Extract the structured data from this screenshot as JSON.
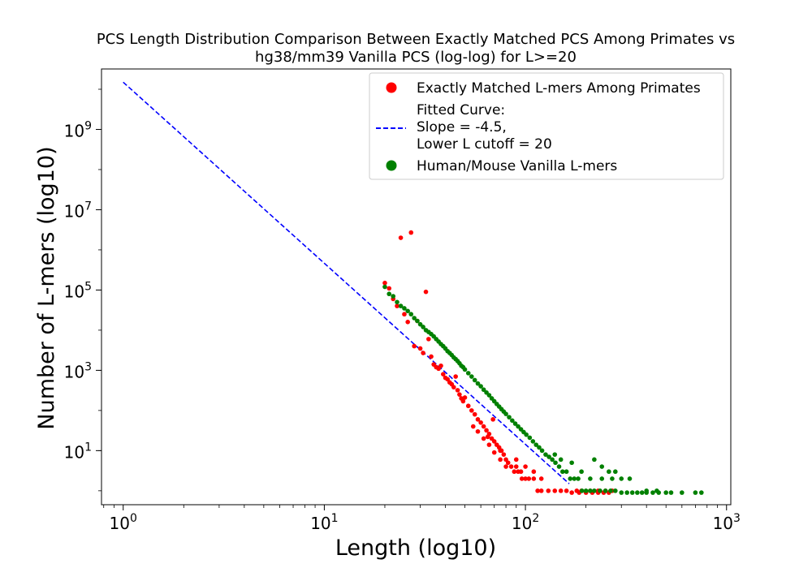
{
  "chart_data": {
    "type": "scatter",
    "title": [
      "PCS Length Distribution Comparison Between Exactly Matched PCS Among Primates vs",
      "hg38/mm39 Vanilla PCS (log-log) for L>=20"
    ],
    "xlabel": "Length (log10)",
    "ylabel": "Number of L-mers (log10)",
    "xscale": "log",
    "yscale": "log",
    "xlim": [
      0.78,
      1050
    ],
    "ylim": [
      0.45,
      32000000000.0
    ],
    "x_ticks": [
      {
        "base": "10",
        "exp": "0",
        "value": 1
      },
      {
        "base": "10",
        "exp": "1",
        "value": 10
      },
      {
        "base": "10",
        "exp": "2",
        "value": 100
      },
      {
        "base": "10",
        "exp": "3",
        "value": 1000
      }
    ],
    "y_ticks": [
      {
        "base": "10",
        "exp": "1",
        "value": 10
      },
      {
        "base": "10",
        "exp": "3",
        "value": 1000
      },
      {
        "base": "10",
        "exp": "5",
        "value": 100000
      },
      {
        "base": "10",
        "exp": "7",
        "value": 10000000
      },
      {
        "base": "10",
        "exp": "9",
        "value": 1000000000
      }
    ],
    "legend_position": "top-right",
    "legend": [
      {
        "lines": [
          "Exactly Matched L-mers Among Primates"
        ],
        "marker": "dot",
        "color": "#ff0000"
      },
      {
        "lines": [
          "Fitted Curve:",
          "Slope = -4.5,",
          "Lower L cutoff = 20"
        ],
        "marker": "dashed-line",
        "color": "#0000ff"
      },
      {
        "lines": [
          "Human/Mouse Vanilla L-mers"
        ],
        "marker": "dot",
        "color": "#008000"
      }
    ],
    "series": [
      {
        "name": "Exactly Matched L-mers Among Primates",
        "color": "#ff0000",
        "points": [
          [
            20,
            150000
          ],
          [
            21,
            110000
          ],
          [
            22,
            60000
          ],
          [
            23,
            40000
          ],
          [
            24,
            2000000
          ],
          [
            25,
            25000
          ],
          [
            26,
            16000
          ],
          [
            27,
            2700000
          ],
          [
            28,
            4000
          ],
          [
            29,
            17000
          ],
          [
            30,
            3500
          ],
          [
            31,
            2700
          ],
          [
            32,
            90000
          ],
          [
            33,
            6000
          ],
          [
            34,
            2200
          ],
          [
            35,
            1400
          ],
          [
            36,
            1200
          ],
          [
            37,
            1100
          ],
          [
            38,
            1300
          ],
          [
            39,
            800
          ],
          [
            40,
            650
          ],
          [
            41,
            600
          ],
          [
            42,
            500
          ],
          [
            43,
            450
          ],
          [
            44,
            380
          ],
          [
            45,
            700
          ],
          [
            46,
            320
          ],
          [
            47,
            250
          ],
          [
            48,
            200
          ],
          [
            49,
            170
          ],
          [
            50,
            210
          ],
          [
            52,
            130
          ],
          [
            54,
            100
          ],
          [
            56,
            80
          ],
          [
            58,
            60
          ],
          [
            60,
            50
          ],
          [
            62,
            40
          ],
          [
            64,
            32
          ],
          [
            66,
            26
          ],
          [
            68,
            20
          ],
          [
            70,
            17
          ],
          [
            72,
            14
          ],
          [
            74,
            12
          ],
          [
            76,
            10
          ],
          [
            78,
            8
          ],
          [
            80,
            6
          ],
          [
            82,
            5
          ],
          [
            85,
            4
          ],
          [
            88,
            3
          ],
          [
            92,
            3
          ],
          [
            96,
            2
          ],
          [
            100,
            2
          ],
          [
            104,
            2
          ],
          [
            110,
            2
          ],
          [
            115,
            1
          ],
          [
            120,
            1
          ],
          [
            130,
            1
          ],
          [
            140,
            1
          ],
          [
            150,
            1
          ],
          [
            160,
            1
          ],
          [
            180,
            1
          ],
          [
            170,
            0.9
          ],
          [
            185,
            0.9
          ],
          [
            200,
            0.9
          ],
          [
            215,
            0.9
          ],
          [
            230,
            0.9
          ],
          [
            245,
            0.9
          ],
          [
            260,
            0.9
          ],
          [
            190,
            1
          ],
          [
            210,
            1
          ],
          [
            230,
            1
          ],
          [
            250,
            1
          ],
          [
            270,
            1
          ],
          [
            55,
            40
          ],
          [
            58,
            30
          ],
          [
            62,
            20
          ],
          [
            66,
            14
          ],
          [
            70,
            9
          ],
          [
            75,
            6
          ],
          [
            80,
            4
          ],
          [
            90,
            4
          ],
          [
            95,
            3
          ],
          [
            100,
            4
          ],
          [
            110,
            3
          ],
          [
            120,
            2
          ],
          [
            65,
            22
          ],
          [
            75,
            10
          ],
          [
            90,
            6
          ],
          [
            69,
            60
          ]
        ]
      },
      {
        "name": "Human/Mouse Vanilla L-mers",
        "color": "#008000",
        "points": [
          [
            20,
            120000
          ],
          [
            21,
            80000
          ],
          [
            22,
            70000
          ],
          [
            23,
            50000
          ],
          [
            24,
            40000
          ],
          [
            25,
            35000
          ],
          [
            26,
            30000
          ],
          [
            27,
            25000
          ],
          [
            28,
            20000
          ],
          [
            29,
            17000
          ],
          [
            30,
            14000
          ],
          [
            31,
            12000
          ],
          [
            32,
            10000
          ],
          [
            33,
            9000
          ],
          [
            34,
            8000
          ],
          [
            35,
            7000
          ],
          [
            36,
            6000
          ],
          [
            37,
            5200
          ],
          [
            38,
            4500
          ],
          [
            39,
            4000
          ],
          [
            40,
            3500
          ],
          [
            41,
            3000
          ],
          [
            42,
            2700
          ],
          [
            43,
            2400
          ],
          [
            44,
            2100
          ],
          [
            45,
            1900
          ],
          [
            46,
            1700
          ],
          [
            47,
            1500
          ],
          [
            48,
            1300
          ],
          [
            49,
            1200
          ],
          [
            50,
            1050
          ],
          [
            52,
            850
          ],
          [
            54,
            700
          ],
          [
            56,
            570
          ],
          [
            58,
            470
          ],
          [
            60,
            400
          ],
          [
            62,
            330
          ],
          [
            64,
            280
          ],
          [
            66,
            240
          ],
          [
            68,
            200
          ],
          [
            70,
            170
          ],
          [
            72,
            145
          ],
          [
            74,
            125
          ],
          [
            76,
            108
          ],
          [
            78,
            94
          ],
          [
            80,
            82
          ],
          [
            83,
            68
          ],
          [
            86,
            56
          ],
          [
            89,
            47
          ],
          [
            92,
            40
          ],
          [
            95,
            34
          ],
          [
            98,
            29
          ],
          [
            101,
            25
          ],
          [
            105,
            21
          ],
          [
            109,
            17
          ],
          [
            113,
            14
          ],
          [
            117,
            12
          ],
          [
            121,
            10
          ],
          [
            126,
            8
          ],
          [
            131,
            7
          ],
          [
            136,
            6
          ],
          [
            141,
            5
          ],
          [
            147,
            4
          ],
          [
            153,
            3
          ],
          [
            160,
            3
          ],
          [
            167,
            2
          ],
          [
            175,
            2
          ],
          [
            183,
            2
          ],
          [
            191,
            1
          ],
          [
            200,
            1
          ],
          [
            210,
            1
          ],
          [
            220,
            1
          ],
          [
            235,
            1
          ],
          [
            250,
            1
          ],
          [
            265,
            1
          ],
          [
            280,
            1
          ],
          [
            300,
            0.9
          ],
          [
            320,
            0.9
          ],
          [
            340,
            0.9
          ],
          [
            360,
            0.9
          ],
          [
            380,
            0.9
          ],
          [
            400,
            0.9
          ],
          [
            430,
            0.9
          ],
          [
            460,
            0.9
          ],
          [
            500,
            0.9
          ],
          [
            530,
            0.9
          ],
          [
            600,
            0.9
          ],
          [
            700,
            0.9
          ],
          [
            750,
            0.9
          ],
          [
            220,
            6
          ],
          [
            240,
            4
          ],
          [
            260,
            3
          ],
          [
            280,
            3
          ],
          [
            300,
            2
          ],
          [
            330,
            2
          ],
          [
            400,
            1
          ],
          [
            450,
            1
          ],
          [
            140,
            8
          ],
          [
            150,
            6
          ],
          [
            170,
            5
          ],
          [
            190,
            3
          ],
          [
            210,
            2
          ],
          [
            240,
            2
          ],
          [
            270,
            2
          ]
        ]
      }
    ],
    "fit_line": {
      "name": "Fitted Curve",
      "slope": -4.5,
      "points": [
        [
          1,
          15000000000.0
        ],
        [
          165,
          1.5
        ]
      ],
      "color": "#0000ff",
      "style": "dashed"
    }
  }
}
